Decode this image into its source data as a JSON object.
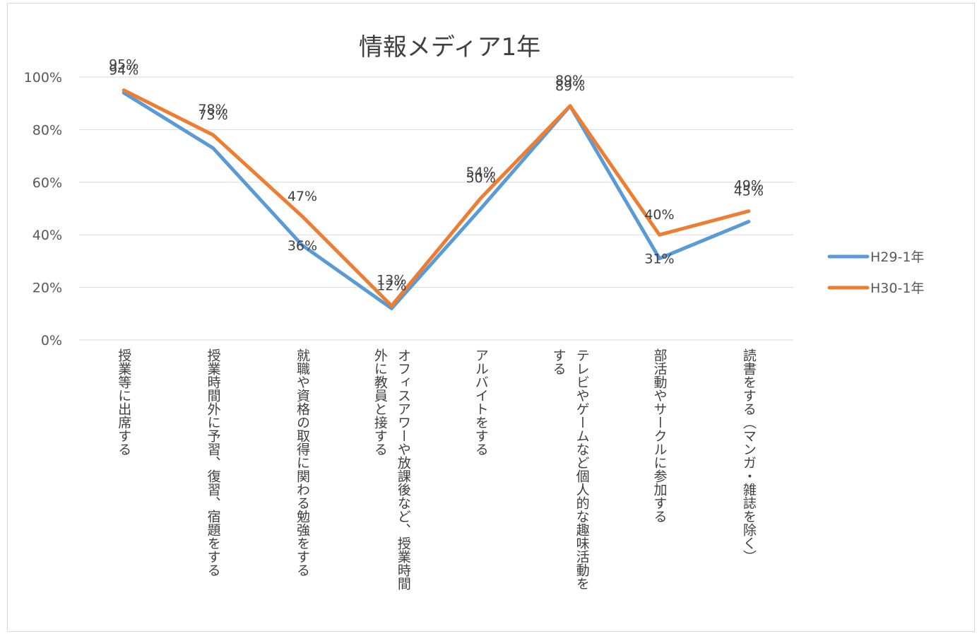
{
  "chart_data": {
    "type": "line",
    "title": "情報メディア1年",
    "categories": [
      [
        "授業等に出席する"
      ],
      [
        "授業時間外に予習︑復習︑宿題をする"
      ],
      [
        "就職や資格の取得に関わる勉強をする"
      ],
      [
        "オフィスアワーや放課後など︑授業時間",
        "外に教員と接する"
      ],
      [
        "アルバイトをする"
      ],
      [
        "テレビやゲームなど個人的な趣味活動を",
        "する"
      ],
      [
        "部活動やサークルに参加する"
      ],
      [
        "読書をする︵マンガ・雑誌を除く︶"
      ]
    ],
    "series": [
      {
        "name": "H29-1年",
        "color": "#5b9bd5",
        "values": [
          0.94,
          0.73,
          0.36,
          0.12,
          0.5,
          0.89,
          0.31,
          0.45
        ],
        "labels": [
          "94%",
          "73%",
          "36%",
          "12%",
          "50%",
          "89%",
          "31%",
          "45%"
        ]
      },
      {
        "name": "H30-1年",
        "color": "#ed7d31",
        "values": [
          0.95,
          0.78,
          0.47,
          0.13,
          0.54,
          0.89,
          0.4,
          0.49
        ],
        "labels": [
          "95%",
          "78%",
          "47%",
          "13%",
          "54%",
          "89%",
          "40%",
          "49%"
        ]
      }
    ],
    "y_axis": {
      "min": 0,
      "max": 1,
      "ticks": [
        0,
        0.2,
        0.4,
        0.6,
        0.8,
        1.0
      ],
      "tick_labels": [
        "0%",
        "20%",
        "40%",
        "60%",
        "80%",
        "100%"
      ]
    },
    "grid": true,
    "legend": "right"
  }
}
